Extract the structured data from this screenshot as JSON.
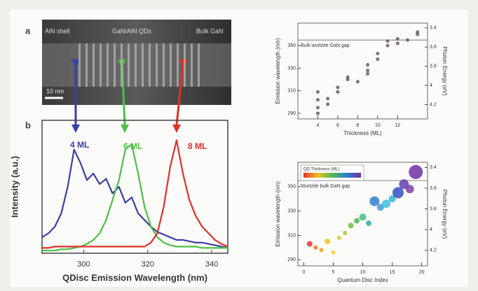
{
  "figure": {
    "panels": [
      "a",
      "b"
    ],
    "tem_labels": [
      "AlN shell",
      "GaN/AlN QDs",
      "Bulk GaN"
    ],
    "scale_bar": "10 nm"
  },
  "chart_data": [
    {
      "type": "line",
      "x_label": "QDisc Emission Wavelength (nm)",
      "y_label": "Intensity (a.u.)",
      "x": [
        287,
        289,
        291,
        293,
        295,
        297,
        299,
        301,
        303,
        305,
        307,
        309,
        311,
        313,
        315,
        317,
        319,
        321,
        323,
        325,
        327,
        329,
        331,
        333,
        335,
        337,
        339,
        341,
        343,
        345
      ],
      "series": [
        {
          "name": "4 ML",
          "color": "#3a3fa8",
          "values": [
            0.12,
            0.15,
            0.2,
            0.3,
            0.5,
            0.78,
            0.68,
            0.55,
            0.6,
            0.52,
            0.56,
            0.45,
            0.5,
            0.38,
            0.42,
            0.3,
            0.25,
            0.2,
            0.16,
            0.14,
            0.12,
            0.1,
            0.1,
            0.09,
            0.08,
            0.08,
            0.07,
            0.06,
            0.05,
            0.04
          ]
        },
        {
          "name": "6 ML",
          "color": "#4fbf45",
          "values": [
            0.02,
            0.02,
            0.02,
            0.03,
            0.03,
            0.04,
            0.05,
            0.07,
            0.1,
            0.15,
            0.25,
            0.4,
            0.55,
            0.78,
            0.82,
            0.6,
            0.35,
            0.2,
            0.12,
            0.08,
            0.06,
            0.05,
            0.05,
            0.05,
            0.05,
            0.04,
            0.04,
            0.04,
            0.04,
            0.04
          ]
        },
        {
          "name": "8 ML",
          "color": "#e0302a",
          "values": [
            0.04,
            0.04,
            0.05,
            0.05,
            0.05,
            0.05,
            0.05,
            0.05,
            0.05,
            0.05,
            0.05,
            0.05,
            0.05,
            0.05,
            0.05,
            0.05,
            0.05,
            0.08,
            0.15,
            0.35,
            0.65,
            0.85,
            0.6,
            0.4,
            0.28,
            0.2,
            0.15,
            0.1,
            0.07,
            0.05
          ]
        }
      ],
      "xlim": [
        287,
        345
      ],
      "xticks": [
        300,
        320,
        340
      ],
      "ylim": [
        0,
        1
      ]
    },
    {
      "type": "scatter",
      "x_label": "Thickness (ML)",
      "y_label": "Emission wavelength (nm)",
      "y2_label": "Photon Energy (eV)",
      "x": [
        4,
        4,
        4,
        4,
        5,
        5,
        6,
        6,
        7,
        7,
        8,
        9,
        9,
        9,
        10,
        10,
        11,
        11,
        12,
        12,
        13,
        14,
        14
      ],
      "values": [
        290,
        295,
        302,
        309,
        303,
        298,
        313,
        309,
        320,
        322,
        318,
        328,
        325,
        333,
        338,
        343,
        350,
        354,
        352,
        356,
        355,
        362,
        360
      ],
      "color": "#6a5a5a",
      "xlim": [
        2,
        15
      ],
      "xticks": [
        4,
        6,
        8,
        10,
        12
      ],
      "ylim": [
        285,
        370
      ],
      "yticks": [
        290,
        310,
        330,
        350
      ],
      "y2lim": [
        4.35,
        3.35
      ],
      "y2ticks": [
        4.2,
        4.0,
        3.8,
        3.6,
        3.4
      ],
      "hline": {
        "value": 355,
        "label": "Bulk wurtzite GaN gap"
      }
    },
    {
      "type": "scatter",
      "x_label": "Quantum Disc Index",
      "y_label": "Emission wavelength (nm)",
      "y2_label": "Photon Energy (eV)",
      "legend_title": "QD Thickness (ML)",
      "x": [
        1,
        2,
        3,
        4,
        5,
        6,
        7,
        8,
        9,
        10,
        11,
        12,
        13,
        14,
        15,
        16,
        17,
        18,
        19
      ],
      "values": [
        303,
        300,
        298,
        305,
        296,
        308,
        312,
        318,
        322,
        325,
        320,
        338,
        333,
        336,
        340,
        345,
        352,
        348,
        362
      ],
      "sizes": [
        4,
        3,
        3,
        4,
        3,
        3,
        3,
        4,
        4,
        5,
        4,
        7,
        5,
        6,
        5,
        8,
        7,
        6,
        10
      ],
      "colors": [
        "#e83030",
        "#f07020",
        "#e8a020",
        "#f0c020",
        "#e8d030",
        "#c8d030",
        "#a0c830",
        "#70c040",
        "#50b850",
        "#40c080",
        "#30b0a0",
        "#3080d0",
        "#40a0d0",
        "#40c0e0",
        "#30b8d8",
        "#3050c0",
        "#6040b0",
        "#8040a0",
        "#7030a0"
      ],
      "xlim": [
        -1,
        21
      ],
      "xticks": [
        0,
        5,
        10,
        15,
        20
      ],
      "ylim": [
        285,
        370
      ],
      "yticks": [
        290,
        310,
        330,
        350
      ],
      "y2lim": [
        4.35,
        3.35
      ],
      "y2ticks": [
        4.2,
        4.0,
        3.8,
        3.6,
        3.4
      ],
      "hline": {
        "value": 355,
        "label": "Wurtzite bulk GaN gap"
      }
    }
  ]
}
